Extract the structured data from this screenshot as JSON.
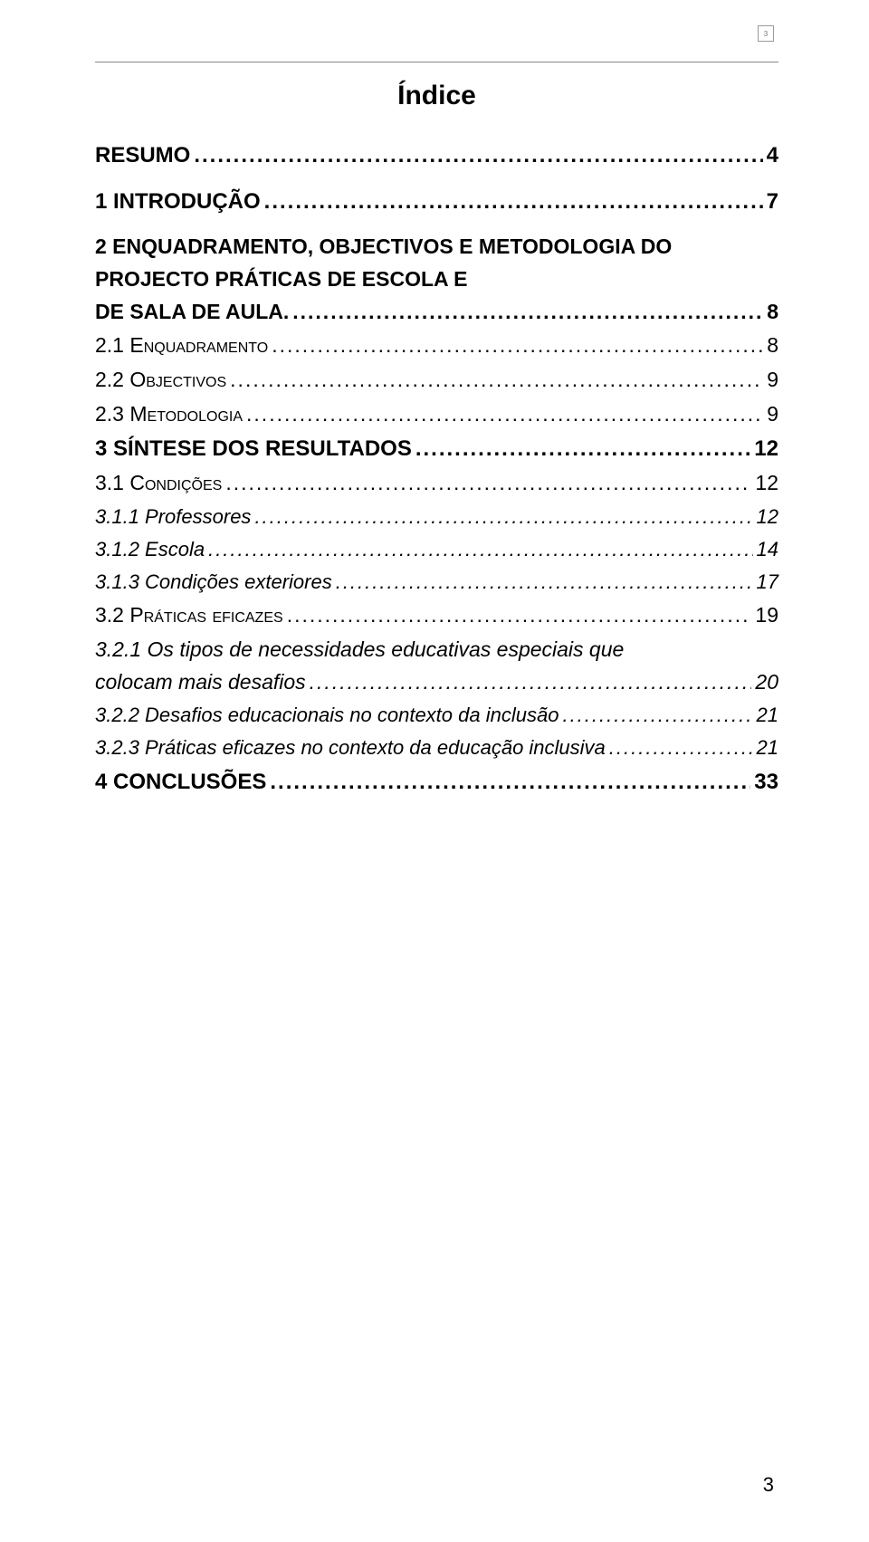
{
  "header": {
    "corner_marker": "3",
    "title": "Índice"
  },
  "toc": {
    "entries": [
      {
        "level": 1,
        "style": "bold",
        "label": "RESUMO",
        "page": "4",
        "spacer_after": true
      },
      {
        "level": 1,
        "style": "bold",
        "label": "1 INTRODUÇÃO",
        "page": "7",
        "spacer_after": true
      },
      {
        "level": 1,
        "style": "bold",
        "label": "2 ENQUADRAMENTO, OBJECTIVOS E METODOLOGIA DO PROJECTO PRÁTICAS DE ESCOLA E DE SALA DE AULA.",
        "page": "8",
        "multiline": true
      },
      {
        "level": 2,
        "style": "smallcaps",
        "label": "2.1 Enquadramento",
        "page": "8"
      },
      {
        "level": 2,
        "style": "smallcaps",
        "label": "2.2 Objectivos",
        "page": "9"
      },
      {
        "level": 2,
        "style": "smallcaps",
        "label": "2.3 Metodologia",
        "page": "9"
      },
      {
        "level": 1,
        "style": "bold",
        "label": "3 SÍNTESE DOS RESULTADOS",
        "page": "12"
      },
      {
        "level": 2,
        "style": "smallcaps",
        "label": "3.1 Condições",
        "page": "12"
      },
      {
        "level": 3,
        "style": "italic",
        "label": "3.1.1 Professores",
        "page": "12"
      },
      {
        "level": 3,
        "style": "italic",
        "label": "3.1.2 Escola",
        "page": "14"
      },
      {
        "level": 3,
        "style": "italic",
        "label": "3.1.3 Condições exteriores",
        "page": "17"
      },
      {
        "level": 2,
        "style": "smallcaps",
        "label": "3.2 Práticas eficazes",
        "page": "19"
      },
      {
        "level": 3,
        "style": "italic",
        "label": "3.2.1 Os tipos de necessidades educativas especiais que colocam mais desafios",
        "page": "20",
        "multiline": true
      },
      {
        "level": 3,
        "style": "italic",
        "label": "3.2.2 Desafios educacionais no contexto da inclusão",
        "page": "21"
      },
      {
        "level": 3,
        "style": "italic",
        "label": "3.2.3 Práticas eficazes no contexto da educação inclusiva",
        "page": "21"
      },
      {
        "level": 1,
        "style": "bold",
        "label": "4 CONCLUSÕES",
        "page": "33"
      }
    ]
  },
  "footer": {
    "page_number": "3"
  },
  "colors": {
    "text": "#000000",
    "rule": "#888888",
    "marker_border": "#999999",
    "background": "#ffffff"
  },
  "typography": {
    "title_fontsize": 30,
    "level1_fontsize": 24,
    "level2_fontsize": 23,
    "level3_fontsize": 22,
    "footer_fontsize": 22,
    "font_family": "Arial"
  }
}
